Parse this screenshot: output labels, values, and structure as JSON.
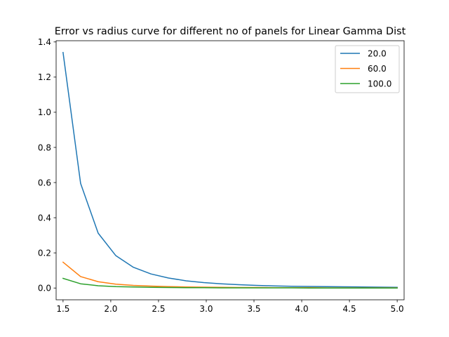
{
  "chart_data": {
    "type": "line",
    "title": "Error vs radius curve for different no of panels for Linear Gamma Dist",
    "xlabel": "",
    "ylabel": "",
    "xlim": [
      1.4275,
      5.0725
    ],
    "ylim": [
      -0.067,
      1.407
    ],
    "xticks": [
      1.5,
      2.0,
      2.5,
      3.0,
      3.5,
      4.0,
      4.5,
      5.0
    ],
    "xtick_labels": [
      "1.5",
      "2.0",
      "2.5",
      "3.0",
      "3.5",
      "4.0",
      "4.5",
      "5.0"
    ],
    "yticks": [
      0.0,
      0.2,
      0.4,
      0.6,
      0.8,
      1.0,
      1.2,
      1.4
    ],
    "ytick_labels": [
      "0.0",
      "0.2",
      "0.4",
      "0.6",
      "0.8",
      "1.0",
      "1.2",
      "1.4"
    ],
    "grid": false,
    "legend_position": "top-right",
    "x": [
      1.5,
      1.684,
      1.868,
      2.053,
      2.237,
      2.421,
      2.605,
      2.789,
      2.974,
      3.158,
      3.342,
      3.526,
      3.711,
      3.895,
      4.079,
      4.263,
      4.447,
      4.632,
      4.816,
      5.0
    ],
    "series": [
      {
        "name": "20.0",
        "color": "#1f77b4",
        "values": [
          1.34,
          0.595,
          0.312,
          0.184,
          0.118,
          0.08,
          0.057,
          0.041,
          0.031,
          0.024,
          0.019,
          0.015,
          0.012,
          0.01,
          0.009,
          0.008,
          0.007,
          0.006,
          0.005,
          0.004
        ]
      },
      {
        "name": "60.0",
        "color": "#ff7f0e",
        "values": [
          0.147,
          0.065,
          0.036,
          0.022,
          0.015,
          0.011,
          0.008,
          0.006,
          0.005,
          0.004,
          0.003,
          0.003,
          0.002,
          0.002,
          0.002,
          0.001,
          0.001,
          0.001,
          0.001,
          0.001
        ]
      },
      {
        "name": "100.0",
        "color": "#2ca02c",
        "values": [
          0.055,
          0.024,
          0.013,
          0.008,
          0.006,
          0.004,
          0.003,
          0.002,
          0.002,
          0.001,
          0.001,
          0.001,
          0.001,
          0.001,
          0.0,
          0.0,
          0.0,
          0.0,
          0.0,
          0.0
        ]
      }
    ]
  }
}
